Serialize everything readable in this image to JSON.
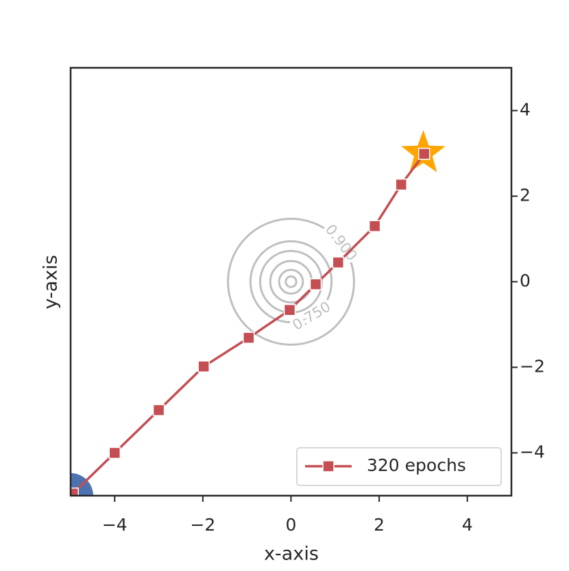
{
  "chart_data": {
    "type": "line",
    "x_label": "x-axis",
    "y_label": "y-axis",
    "xlim": [
      -5,
      5
    ],
    "ylim": [
      -5,
      5
    ],
    "xticks": [
      {
        "value": -4,
        "label": "−4"
      },
      {
        "value": -2,
        "label": "−2"
      },
      0,
      2,
      4
    ],
    "yticks": [
      {
        "value": -4,
        "label": "−4"
      },
      {
        "value": -2,
        "label": "−2"
      },
      0,
      2,
      4
    ],
    "y_axis_side": "right",
    "grid": false,
    "legend": "lower right",
    "series": [
      {
        "name": "320 epochs",
        "color": "#c44e52",
        "marker": "square",
        "x": [
          -4.95,
          -4.0,
          -3.0,
          -1.98,
          -0.96,
          -0.03,
          0.56,
          1.07,
          1.9,
          2.5,
          3.02
        ],
        "values": [
          -4.95,
          -4.0,
          -3.0,
          -1.98,
          -1.31,
          -0.66,
          -0.06,
          0.45,
          1.3,
          2.27,
          2.99
        ]
      }
    ],
    "start": {
      "x": -5,
      "y": -5,
      "color": "#4c72b0"
    },
    "goal": {
      "x": 3,
      "y": 3,
      "color": "#ffa500"
    },
    "contours": {
      "center": [
        0,
        0
      ],
      "color": "#bfbfbf",
      "levels": [
        {
          "radius": 1.43,
          "label": "0.900"
        },
        {
          "radius": 0.92,
          "label": "0.750"
        },
        {
          "radius": 0.7
        },
        {
          "radius": 0.47
        },
        {
          "radius": 0.27
        },
        {
          "radius": 0.12
        }
      ]
    }
  }
}
